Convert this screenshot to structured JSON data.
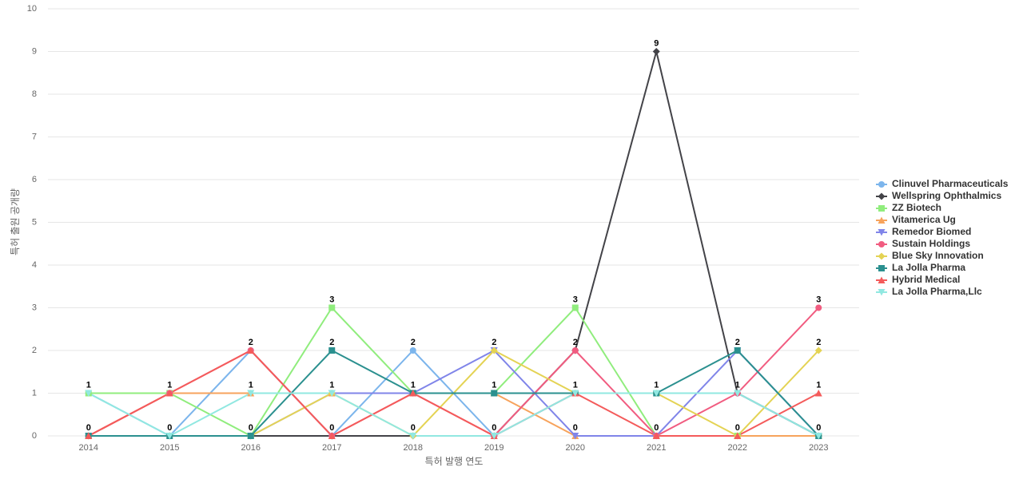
{
  "chart_data": {
    "type": "line",
    "x_label": "특허 발행 연도",
    "y_label": "특허 출원 공개량",
    "categories": [
      "2014",
      "2015",
      "2016",
      "2017",
      "2018",
      "2019",
      "2020",
      "2021",
      "2022",
      "2023"
    ],
    "ylim": [
      0,
      10
    ],
    "yticks": [
      0,
      1,
      2,
      3,
      4,
      5,
      6,
      7,
      8,
      9,
      10
    ],
    "grid": true,
    "legend": "right",
    "series": [
      {
        "name": "Clinuvel Pharmaceuticals",
        "color": "#7cb5ec",
        "marker": "circle",
        "values": [
          1,
          0,
          2,
          0,
          2,
          0,
          1,
          1,
          1,
          0
        ]
      },
      {
        "name": "Wellspring Ophthalmics",
        "color": "#434348",
        "marker": "diamond",
        "values": [
          0,
          0,
          0,
          0,
          0,
          0,
          2,
          9,
          1,
          0
        ]
      },
      {
        "name": "ZZ Biotech",
        "color": "#90ed7d",
        "marker": "square",
        "values": [
          1,
          1,
          0,
          3,
          1,
          1,
          3,
          0,
          0,
          0
        ]
      },
      {
        "name": "Vitamerica Ug",
        "color": "#f7a35c",
        "marker": "triangle",
        "values": [
          0,
          1,
          1,
          1,
          1,
          1,
          0,
          0,
          0,
          0
        ]
      },
      {
        "name": "Remedor Biomed",
        "color": "#8085e9",
        "marker": "triangle-down",
        "values": [
          0,
          0,
          0,
          1,
          1,
          2,
          0,
          0,
          2,
          0
        ]
      },
      {
        "name": "Sustain Holdings",
        "color": "#f15c80",
        "marker": "circle",
        "values": [
          0,
          1,
          2,
          0,
          1,
          0,
          2,
          0,
          1,
          3
        ]
      },
      {
        "name": "Blue Sky Innovation",
        "color": "#e4d354",
        "marker": "diamond",
        "values": [
          0,
          0,
          0,
          1,
          0,
          2,
          1,
          1,
          0,
          2
        ]
      },
      {
        "name": "La Jolla Pharma",
        "color": "#2b908f",
        "marker": "square",
        "values": [
          0,
          0,
          0,
          2,
          1,
          1,
          1,
          1,
          2,
          0
        ]
      },
      {
        "name": "Hybrid Medical",
        "color": "#f45b5b",
        "marker": "triangle",
        "values": [
          0,
          1,
          2,
          0,
          1,
          0,
          1,
          0,
          0,
          1
        ]
      },
      {
        "name": "La Jolla Pharma,Llc",
        "color": "#91e8e1",
        "marker": "triangle-down",
        "values": [
          1,
          0,
          1,
          1,
          0,
          0,
          1,
          1,
          1,
          0
        ]
      }
    ]
  }
}
